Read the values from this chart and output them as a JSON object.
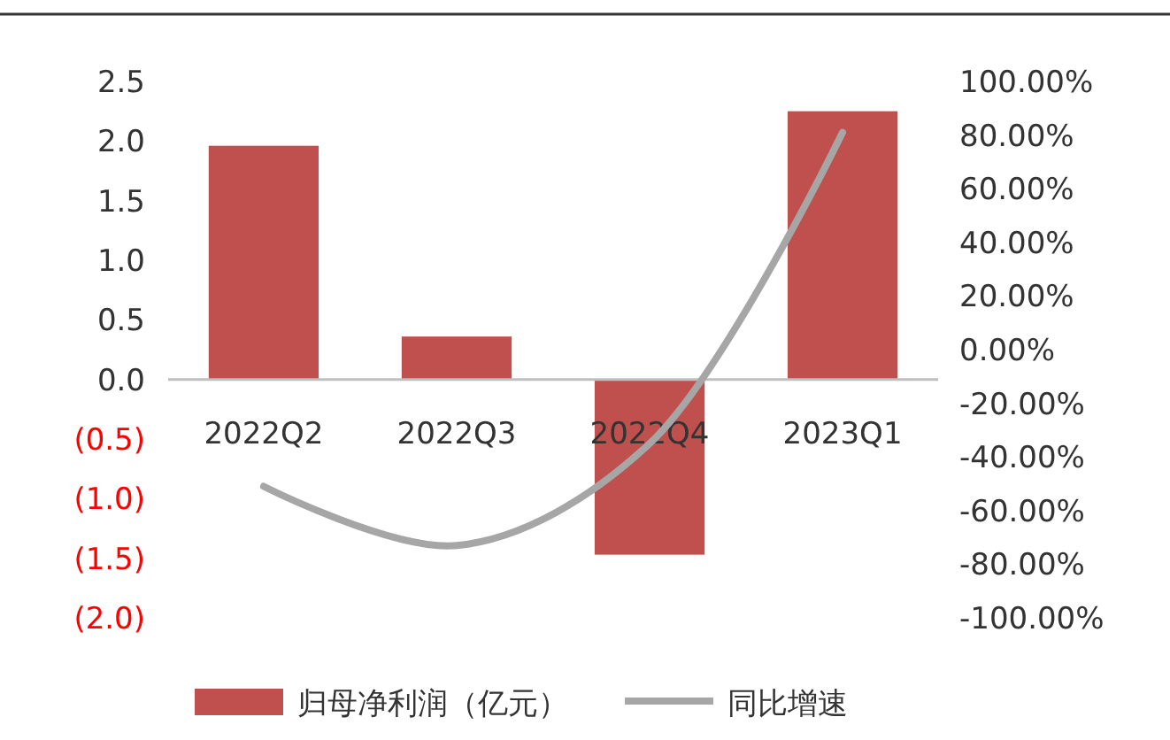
{
  "chart_data": {
    "type": "bar",
    "categories": [
      "2022Q2",
      "2022Q3",
      "2022Q4",
      "2023Q1"
    ],
    "series": [
      {
        "name": "归母净利润（亿元）",
        "color": "#c0504d",
        "values": [
          1.96,
          0.36,
          -1.47,
          2.25
        ]
      },
      {
        "name": "同比增速",
        "type": "line",
        "axis": "y2",
        "color": "#a6a6a6",
        "values": [
          -51,
          -73,
          -35,
          81
        ]
      }
    ],
    "ylim": [
      -2,
      2.5
    ],
    "yticks": [
      {
        "value": -2,
        "label": "(2.0)"
      },
      {
        "value": -1.5,
        "label": "(1.5)"
      },
      {
        "value": -1,
        "label": "(1.0)"
      },
      {
        "value": -0.5,
        "label": "(0.5)"
      },
      {
        "value": 0,
        "label": "0.0"
      },
      {
        "value": 0.5,
        "label": "0.5"
      },
      {
        "value": 1,
        "label": "1.0"
      },
      {
        "value": 1.5,
        "label": "1.5"
      },
      {
        "value": 2,
        "label": "2.0"
      },
      {
        "value": 2.5,
        "label": "2.5"
      }
    ],
    "y2lim": [
      -100,
      100
    ],
    "y2ticks": [
      {
        "value": -100,
        "label": "-100.00%"
      },
      {
        "value": -80,
        "label": "-80.00%"
      },
      {
        "value": -60,
        "label": "-60.00%"
      },
      {
        "value": -40,
        "label": "-40.00%"
      },
      {
        "value": -20,
        "label": "-20.00%"
      },
      {
        "value": 0,
        "label": "0.00%"
      },
      {
        "value": 20,
        "label": "20.00%"
      },
      {
        "value": 40,
        "label": "40.00%"
      },
      {
        "value": 60,
        "label": "60.00%"
      },
      {
        "value": 80,
        "label": "80.00%"
      },
      {
        "value": 100,
        "label": "100.00%"
      }
    ],
    "grid": false,
    "legend": "bottom"
  }
}
